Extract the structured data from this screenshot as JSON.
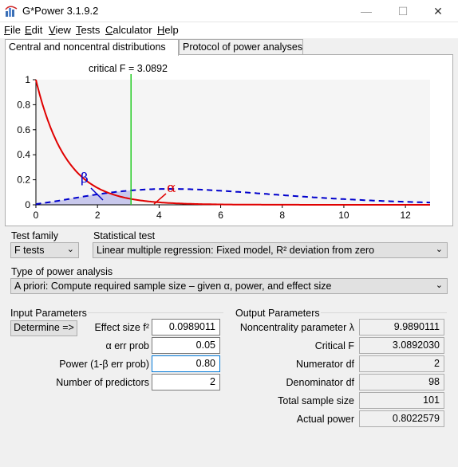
{
  "window": {
    "title": "G*Power 3.1.9.2"
  },
  "menu": [
    {
      "label": "File",
      "key": "F",
      "rest": "ile"
    },
    {
      "label": "Edit",
      "key": "E",
      "rest": "dit"
    },
    {
      "label": "View",
      "key": "V",
      "rest": "iew"
    },
    {
      "label": "Tests",
      "key": "T",
      "rest": "ests"
    },
    {
      "label": "Calculator",
      "key": "C",
      "rest": "alculator"
    },
    {
      "label": "Help",
      "key": "H",
      "rest": "elp"
    }
  ],
  "tabs": [
    {
      "label": "Central and noncentral distributions",
      "active": true
    },
    {
      "label": "Protocol of power analyses",
      "active": false
    }
  ],
  "graph": {
    "critical_label": "critical F = 3.0892",
    "critical_value": 3.0892,
    "x_ticks": [
      "0",
      "2",
      "4",
      "6",
      "8",
      "10",
      "12"
    ],
    "y_ticks": [
      "0",
      "0.2",
      "0.4",
      "0.6",
      "0.8",
      "1"
    ],
    "beta_symbol": "β",
    "alpha_symbol": "α",
    "colors": {
      "central": "#e00000",
      "noncentral": "#0000cc",
      "critical": "#22cc22",
      "beta_fill": "#c8c8ec"
    },
    "x_range": [
      0,
      12.8
    ],
    "y_range": [
      0,
      1
    ]
  },
  "test_family": {
    "label": "Test family",
    "value": "F tests"
  },
  "statistical_test": {
    "label": "Statistical test",
    "value": "Linear multiple regression: Fixed model, R² deviation from zero"
  },
  "power_analysis": {
    "label": "Type of power analysis",
    "value": "A priori: Compute required sample size – given α, power, and effect size"
  },
  "input": {
    "group_label": "Input Parameters",
    "determine_label": "Determine =>",
    "effect_size": {
      "label": "Effect size f²",
      "value": "0.0989011"
    },
    "alpha": {
      "label": "α err prob",
      "value": "0.05"
    },
    "power": {
      "label": "Power (1-β err prob)",
      "value": "0.80"
    },
    "predictors": {
      "label": "Number of predictors",
      "value": "2"
    }
  },
  "output": {
    "group_label": "Output Parameters",
    "noncentrality": {
      "label": "Noncentrality parameter λ",
      "value": "9.9890111"
    },
    "critical_f": {
      "label": "Critical F",
      "value": "3.0892030"
    },
    "numerator_df": {
      "label": "Numerator df",
      "value": "2"
    },
    "denominator_df": {
      "label": "Denominator df",
      "value": "98"
    },
    "sample_size": {
      "label": "Total sample size",
      "value": "101"
    },
    "actual_power": {
      "label": "Actual power",
      "value": "0.8022579"
    }
  }
}
